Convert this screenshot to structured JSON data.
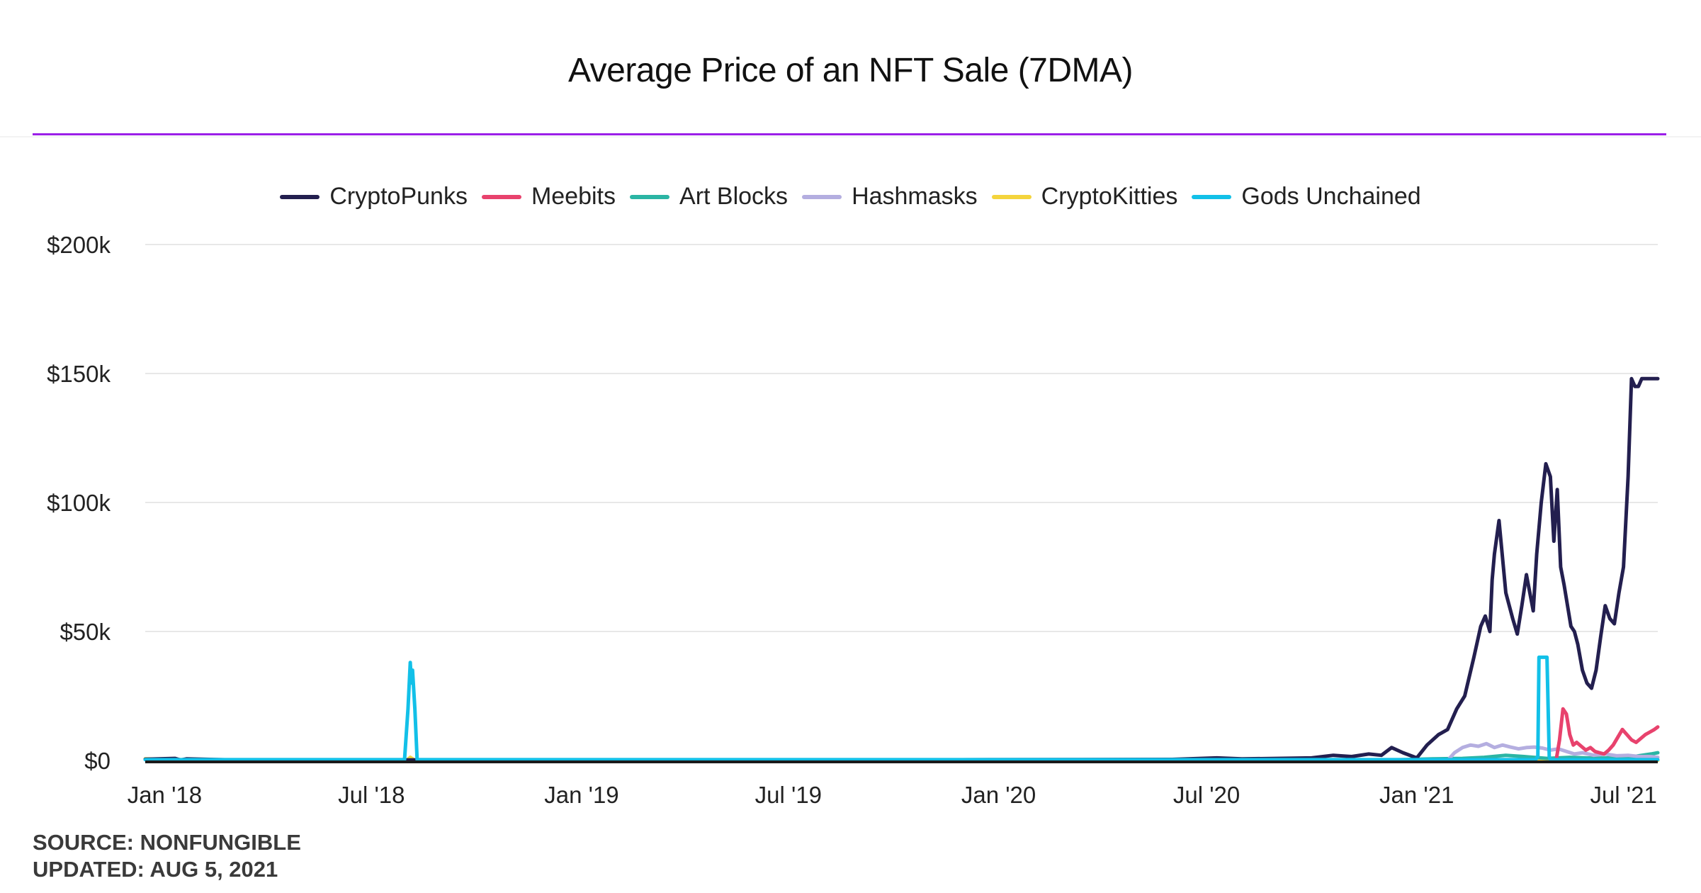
{
  "chart_data": {
    "type": "line",
    "title": "Average Price of an NFT Sale (7DMA)",
    "ylim": [
      0,
      200000
    ],
    "y_ticks": [
      {
        "value": 0,
        "label": "$0"
      },
      {
        "value": 50000,
        "label": "$50k"
      },
      {
        "value": 100000,
        "label": "$100k"
      },
      {
        "value": 150000,
        "label": "$150k"
      },
      {
        "value": 200000,
        "label": "$200k"
      }
    ],
    "x_range": [
      "2017-12-15",
      "2021-07-31"
    ],
    "x_ticks": [
      {
        "value": "2018-01-01",
        "label": "Jan '18"
      },
      {
        "value": "2018-07-01",
        "label": "Jul '18"
      },
      {
        "value": "2019-01-01",
        "label": "Jan '19"
      },
      {
        "value": "2019-07-01",
        "label": "Jul '19"
      },
      {
        "value": "2020-01-01",
        "label": "Jan '20"
      },
      {
        "value": "2020-07-01",
        "label": "Jul '20"
      },
      {
        "value": "2021-01-01",
        "label": "Jan '21"
      },
      {
        "value": "2021-07-01",
        "label": "Jul '21"
      }
    ],
    "grid": true,
    "legend_position": "top-center",
    "series": [
      {
        "name": "CryptoPunks",
        "color": "#231f4f",
        "x": [
          "2017-12-15",
          "2018-01-10",
          "2018-01-15",
          "2018-01-20",
          "2018-03-01",
          "2018-06-01",
          "2018-09-01",
          "2019-01-01",
          "2019-06-01",
          "2019-10-01",
          "2020-01-01",
          "2020-06-01",
          "2020-07-10",
          "2020-08-01",
          "2020-09-01",
          "2020-10-01",
          "2020-10-20",
          "2020-11-05",
          "2020-11-20",
          "2020-12-01",
          "2020-12-10",
          "2020-12-20",
          "2021-01-01",
          "2021-01-10",
          "2021-01-20",
          "2021-01-28",
          "2021-02-05",
          "2021-02-12",
          "2021-02-20",
          "2021-02-26",
          "2021-03-02",
          "2021-03-06",
          "2021-03-08",
          "2021-03-10",
          "2021-03-14",
          "2021-03-20",
          "2021-03-26",
          "2021-03-30",
          "2021-04-03",
          "2021-04-07",
          "2021-04-10",
          "2021-04-13",
          "2021-04-16",
          "2021-04-20",
          "2021-04-24",
          "2021-04-28",
          "2021-05-01",
          "2021-05-04",
          "2021-05-07",
          "2021-05-10",
          "2021-05-13",
          "2021-05-16",
          "2021-05-19",
          "2021-05-22",
          "2021-05-26",
          "2021-05-30",
          "2021-06-03",
          "2021-06-07",
          "2021-06-11",
          "2021-06-15",
          "2021-06-19",
          "2021-06-23",
          "2021-06-27",
          "2021-07-01",
          "2021-07-05",
          "2021-07-08",
          "2021-07-11",
          "2021-07-14",
          "2021-07-17",
          "2021-07-20",
          "2021-07-23",
          "2021-07-26",
          "2021-07-29",
          "2021-07-31"
        ],
        "y": [
          500,
          800,
          200,
          600,
          200,
          200,
          200,
          200,
          200,
          200,
          300,
          400,
          1000,
          600,
          800,
          1000,
          2000,
          1500,
          2500,
          2000,
          5000,
          3000,
          1000,
          6000,
          10000,
          12000,
          20000,
          25000,
          40000,
          52000,
          56000,
          50000,
          70000,
          80000,
          93000,
          65000,
          55000,
          49000,
          60000,
          72000,
          65000,
          58000,
          80000,
          100000,
          115000,
          110000,
          85000,
          105000,
          75000,
          68000,
          60000,
          52000,
          50000,
          45000,
          35000,
          30000,
          28000,
          35000,
          48000,
          60000,
          55000,
          53000,
          65000,
          75000,
          110000,
          148000,
          145000,
          145000,
          148000,
          148000,
          148000,
          148000,
          148000,
          148000
        ]
      },
      {
        "name": "Meebits",
        "color": "#e8426d",
        "x": [
          "2021-05-03",
          "2021-05-06",
          "2021-05-09",
          "2021-05-12",
          "2021-05-15",
          "2021-05-18",
          "2021-05-21",
          "2021-05-25",
          "2021-05-29",
          "2021-06-02",
          "2021-06-06",
          "2021-06-10",
          "2021-06-14",
          "2021-06-18",
          "2021-06-22",
          "2021-06-26",
          "2021-06-30",
          "2021-07-04",
          "2021-07-08",
          "2021-07-12",
          "2021-07-16",
          "2021-07-20",
          "2021-07-24",
          "2021-07-28",
          "2021-07-31"
        ],
        "y": [
          0,
          8000,
          20000,
          18000,
          10000,
          6000,
          7000,
          5500,
          4000,
          5000,
          3500,
          3000,
          2500,
          4000,
          6000,
          9000,
          12000,
          10000,
          8000,
          7000,
          8500,
          10000,
          11000,
          12000,
          13000
        ]
      },
      {
        "name": "Art Blocks",
        "color": "#2bb5a4",
        "x": [
          "2020-11-27",
          "2020-12-20",
          "2021-01-15",
          "2021-02-10",
          "2021-03-01",
          "2021-03-20",
          "2021-04-05",
          "2021-04-25",
          "2021-05-15",
          "2021-06-05",
          "2021-06-25",
          "2021-07-10",
          "2021-07-25",
          "2021-07-31"
        ],
        "y": [
          0,
          300,
          600,
          800,
          1200,
          2000,
          1500,
          800,
          1200,
          900,
          1000,
          1500,
          2500,
          3000
        ]
      },
      {
        "name": "Hashmasks",
        "color": "#b4aee0",
        "x": [
          "2021-01-28",
          "2021-02-03",
          "2021-02-10",
          "2021-02-17",
          "2021-02-24",
          "2021-03-03",
          "2021-03-10",
          "2021-03-17",
          "2021-03-24",
          "2021-03-31",
          "2021-04-07",
          "2021-04-14",
          "2021-04-21",
          "2021-04-28",
          "2021-05-05",
          "2021-05-12",
          "2021-05-19",
          "2021-05-26",
          "2021-06-05",
          "2021-06-15",
          "2021-06-25",
          "2021-07-05",
          "2021-07-15",
          "2021-07-25",
          "2021-07-31"
        ],
        "y": [
          0,
          3000,
          5000,
          6000,
          5500,
          6500,
          5000,
          6000,
          5200,
          4500,
          5000,
          5200,
          4800,
          4000,
          4500,
          3500,
          2500,
          3000,
          2000,
          2500,
          1800,
          2000,
          1500,
          1500,
          1200
        ]
      },
      {
        "name": "CryptoKitties",
        "color": "#f4d43c",
        "x": [
          "2017-12-15",
          "2018-02-01",
          "2018-05-01",
          "2018-08-01",
          "2018-08-04",
          "2018-08-08",
          "2018-12-01",
          "2019-06-01",
          "2020-01-01",
          "2020-06-01",
          "2021-01-01",
          "2021-07-31"
        ],
        "y": [
          600,
          150,
          80,
          80,
          1200,
          80,
          60,
          50,
          40,
          40,
          40,
          40
        ]
      },
      {
        "name": "Gods Unchained",
        "color": "#12c0e8",
        "x": [
          "2017-12-15",
          "2018-07-30",
          "2018-08-02",
          "2018-08-04",
          "2018-08-05",
          "2018-08-06",
          "2018-08-08",
          "2018-08-10",
          "2018-08-12",
          "2018-12-01",
          "2019-06-01",
          "2020-01-01",
          "2020-06-01",
          "2021-01-01",
          "2021-04-15",
          "2021-04-17",
          "2021-04-18",
          "2021-04-25",
          "2021-04-27",
          "2021-04-28",
          "2021-04-30",
          "2021-07-31"
        ],
        "y": [
          300,
          300,
          20000,
          38000,
          30000,
          35000,
          20000,
          300,
          300,
          300,
          300,
          300,
          300,
          300,
          300,
          1500,
          40000,
          40000,
          1500,
          300,
          300,
          300
        ]
      }
    ]
  },
  "source": {
    "line1": "SOURCE: NONFUNGIBLE",
    "line2": "UPDATED: AUG 5, 2021"
  }
}
